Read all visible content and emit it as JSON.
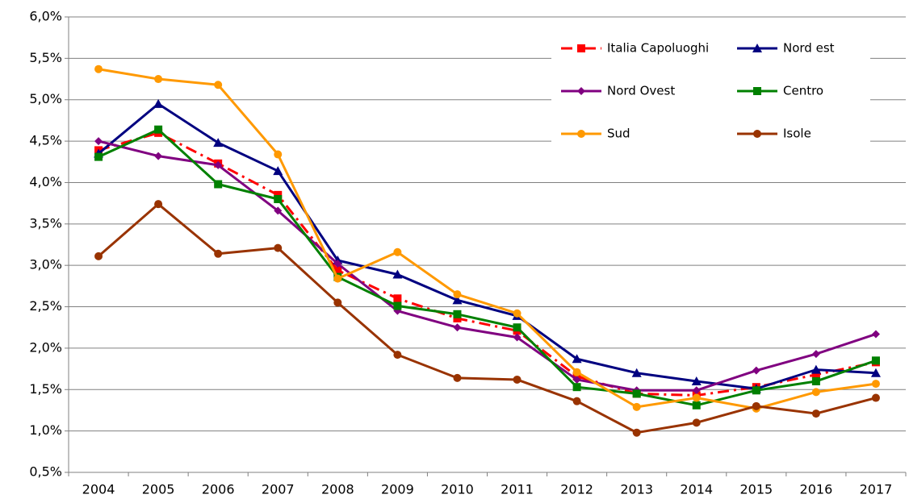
{
  "chart_data": {
    "type": "line",
    "categories": [
      "2004",
      "2005",
      "2006",
      "2007",
      "2008",
      "2009",
      "2010",
      "2011",
      "2012",
      "2013",
      "2014",
      "2015",
      "2016",
      "2017"
    ],
    "series": [
      {
        "name": "Italia Capoluoghi",
        "color": "#ff0000",
        "marker": "square",
        "dash": true,
        "values": [
          4.39,
          4.6,
          4.23,
          3.85,
          2.94,
          2.6,
          2.36,
          2.21,
          1.66,
          1.45,
          1.43,
          1.53,
          1.68,
          1.83
        ]
      },
      {
        "name": "Nord est",
        "color": "#000080",
        "marker": "triangle",
        "dash": false,
        "values": [
          4.35,
          4.95,
          4.48,
          4.14,
          3.06,
          2.89,
          2.58,
          2.39,
          1.87,
          1.7,
          1.6,
          1.51,
          1.74,
          1.7
        ]
      },
      {
        "name": "Nord Ovest",
        "color": "#800080",
        "marker": "diamond",
        "dash": false,
        "values": [
          4.5,
          4.32,
          4.21,
          3.66,
          3.02,
          2.45,
          2.25,
          2.13,
          1.62,
          1.49,
          1.49,
          1.73,
          1.93,
          2.17
        ]
      },
      {
        "name": "Centro",
        "color": "#008000",
        "marker": "square",
        "dash": false,
        "values": [
          4.31,
          4.64,
          3.98,
          3.8,
          2.86,
          2.51,
          2.41,
          2.25,
          1.53,
          1.45,
          1.31,
          1.49,
          1.6,
          1.85
        ]
      },
      {
        "name": "Sud",
        "color": "#ff9900",
        "marker": "circle",
        "dash": false,
        "values": [
          5.37,
          5.25,
          5.18,
          4.34,
          2.84,
          3.16,
          2.65,
          2.42,
          1.71,
          1.29,
          1.4,
          1.27,
          1.47,
          1.57
        ]
      },
      {
        "name": "Isole",
        "color": "#993300",
        "marker": "circle",
        "dash": false,
        "values": [
          3.11,
          3.74,
          3.14,
          3.21,
          2.55,
          1.92,
          1.64,
          1.62,
          1.36,
          0.98,
          1.1,
          1.3,
          1.21,
          1.4
        ]
      }
    ],
    "ylim": [
      0.5,
      6.0
    ],
    "yticks": [
      {
        "value": 0.5,
        "label": "0,5%"
      },
      {
        "value": 1.0,
        "label": "1,0%"
      },
      {
        "value": 1.5,
        "label": "1,5%"
      },
      {
        "value": 2.0,
        "label": "2,0%"
      },
      {
        "value": 2.5,
        "label": "2,5%"
      },
      {
        "value": 3.0,
        "label": "3,0%"
      },
      {
        "value": 3.5,
        "label": "3,5%"
      },
      {
        "value": 4.0,
        "label": "4,0%"
      },
      {
        "value": 4.5,
        "label": "4,5%"
      },
      {
        "value": 5.0,
        "label": "5,0%"
      },
      {
        "value": 5.5,
        "label": "5,5%"
      },
      {
        "value": 6.0,
        "label": "6,0%"
      }
    ],
    "grid": true,
    "legend": "top-right"
  }
}
